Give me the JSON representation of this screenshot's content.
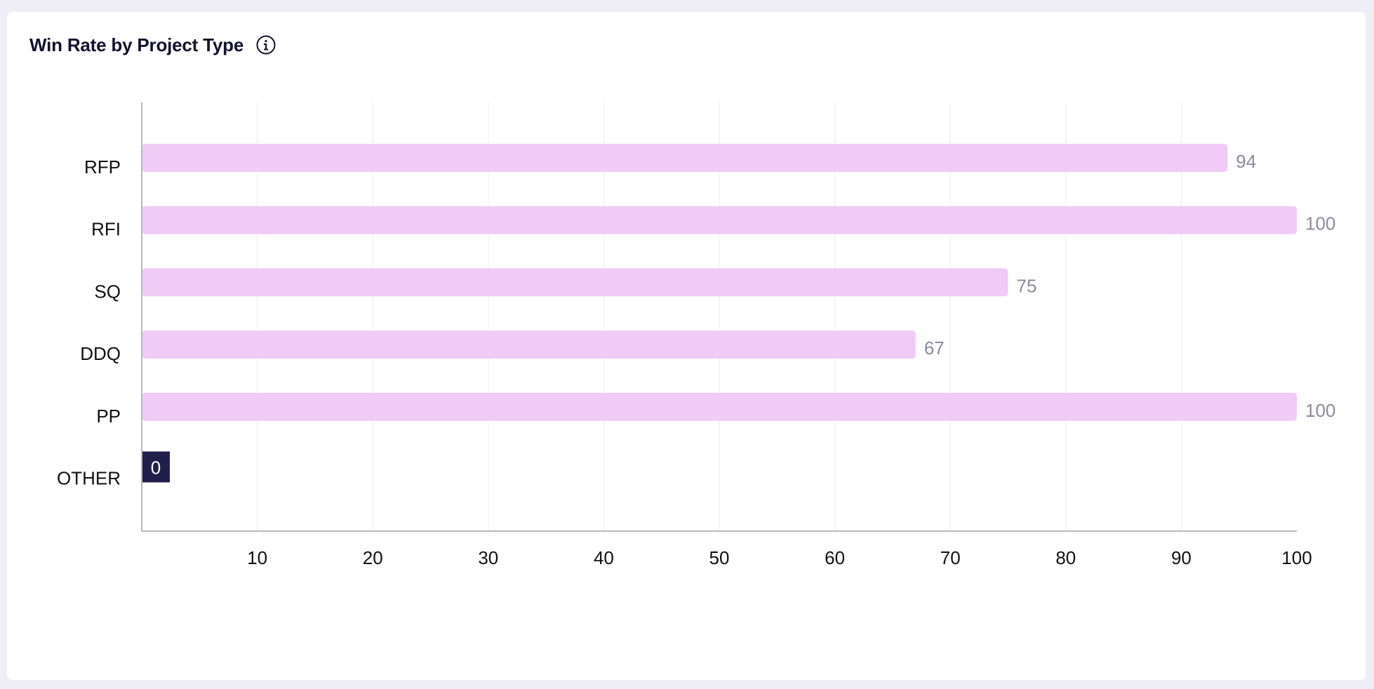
{
  "widget": {
    "title": "Win Rate by Project Type",
    "info_icon": "info-circle-icon"
  },
  "colors": {
    "bar": "#efcbf6",
    "bar_highlight": "#221e4c",
    "grid": "#eceaf0",
    "axis": "#b8b6c0",
    "value_label": "#8e8a9c"
  },
  "chart_data": {
    "type": "bar",
    "orientation": "horizontal",
    "title": "Win Rate by Project Type",
    "categories": [
      "RFP",
      "RFI",
      "SQ",
      "DDQ",
      "PP",
      "OTHER"
    ],
    "values": [
      94,
      100,
      75,
      67,
      100,
      0
    ],
    "xlim": [
      0,
      100
    ],
    "xticks": [
      10,
      20,
      30,
      40,
      50,
      60,
      70,
      80,
      90,
      100
    ],
    "xlabel": "",
    "ylabel": "",
    "grid": true,
    "data_labels": true
  }
}
